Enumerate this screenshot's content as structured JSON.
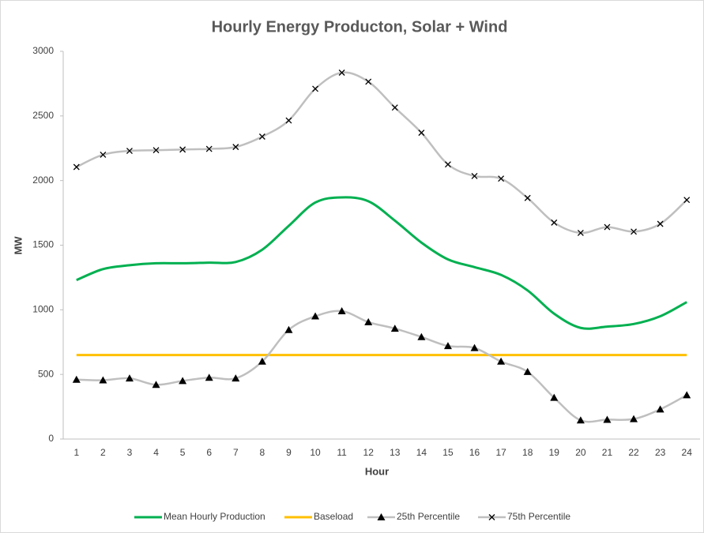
{
  "chart_data": {
    "type": "line",
    "title": "Hourly Energy Producton, Solar + Wind",
    "x_label": "Hour",
    "y_label": "MW",
    "categories": [
      "1",
      "2",
      "3",
      "4",
      "5",
      "6",
      "7",
      "8",
      "9",
      "10",
      "11",
      "12",
      "13",
      "14",
      "15",
      "16",
      "17",
      "18",
      "19",
      "20",
      "21",
      "22",
      "23",
      "24"
    ],
    "ylim": [
      0,
      3000
    ],
    "yticks": [
      0,
      500,
      1000,
      1500,
      2000,
      2500,
      3000
    ],
    "grid": false,
    "legend": "bottom",
    "smooth": true,
    "series": [
      {
        "name": "Mean Hourly Production",
        "color": "#00b050",
        "marker": null,
        "width": 3,
        "values": [
          1230,
          1315,
          1345,
          1360,
          1360,
          1365,
          1370,
          1465,
          1650,
          1830,
          1870,
          1840,
          1690,
          1520,
          1390,
          1330,
          1270,
          1150,
          970,
          860,
          870,
          890,
          950,
          1060
        ]
      },
      {
        "name": "Baseload",
        "color": "#ffc000",
        "marker": null,
        "width": 3,
        "values": [
          650,
          650,
          650,
          650,
          650,
          650,
          650,
          650,
          650,
          650,
          650,
          650,
          650,
          650,
          650,
          650,
          650,
          650,
          650,
          650,
          650,
          650,
          650,
          650
        ]
      },
      {
        "name": "25th Percentile",
        "color": "#bfbfbf",
        "marker": "triangle",
        "width": 2.5,
        "values": [
          460,
          455,
          470,
          420,
          450,
          475,
          470,
          600,
          845,
          950,
          990,
          905,
          855,
          790,
          720,
          705,
          600,
          520,
          320,
          145,
          150,
          155,
          230,
          340
        ]
      },
      {
        "name": "75th Percentile",
        "color": "#bfbfbf",
        "marker": "x",
        "width": 2.5,
        "values": [
          2105,
          2200,
          2230,
          2235,
          2240,
          2245,
          2260,
          2340,
          2465,
          2710,
          2835,
          2765,
          2565,
          2370,
          2125,
          2035,
          2015,
          1865,
          1675,
          1595,
          1640,
          1605,
          1665,
          1850
        ]
      }
    ]
  }
}
